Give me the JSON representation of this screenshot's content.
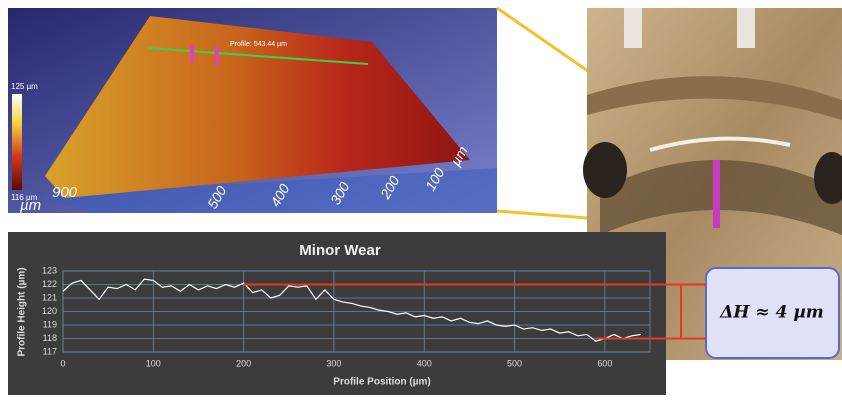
{
  "surface_view": {
    "colorbar_max": "125 µm",
    "colorbar_min": "116 µm",
    "profile_label": "Profile: 543.44 µm",
    "axis_labels": [
      "900",
      "µm",
      "µm",
      "100",
      "200",
      "300",
      "400",
      "500"
    ]
  },
  "chart_data": {
    "type": "line",
    "title": "Minor Wear",
    "x_label": "Profile Position (µm)",
    "y_label": "Profile Height (µm)",
    "x": [
      0,
      10,
      20,
      30,
      40,
      50,
      60,
      70,
      80,
      90,
      100,
      110,
      120,
      130,
      140,
      150,
      160,
      170,
      180,
      190,
      200,
      210,
      220,
      230,
      240,
      250,
      260,
      270,
      280,
      290,
      300,
      310,
      320,
      330,
      340,
      350,
      360,
      370,
      380,
      390,
      400,
      410,
      420,
      430,
      440,
      450,
      460,
      470,
      480,
      490,
      500,
      510,
      520,
      530,
      540,
      550,
      560,
      570,
      580,
      590,
      600,
      610,
      620,
      630,
      640
    ],
    "values": [
      121.5,
      122.1,
      122.3,
      121.6,
      120.9,
      121.8,
      121.7,
      122.0,
      121.6,
      122.4,
      122.3,
      121.8,
      121.9,
      121.5,
      122.0,
      121.6,
      121.9,
      121.7,
      122.0,
      121.8,
      122.1,
      121.4,
      121.6,
      121.0,
      121.2,
      121.9,
      121.8,
      121.9,
      120.9,
      121.6,
      120.9,
      120.7,
      120.6,
      120.4,
      120.3,
      120.1,
      120.0,
      119.8,
      119.9,
      119.6,
      119.7,
      119.5,
      119.6,
      119.3,
      119.5,
      119.2,
      119.1,
      119.3,
      119.0,
      118.9,
      119.0,
      118.7,
      118.8,
      118.6,
      118.7,
      118.4,
      118.5,
      118.2,
      118.3,
      117.8,
      118.0,
      118.3,
      118.0,
      118.2,
      118.3
    ],
    "color": "#ffffff",
    "xlim": [
      0,
      650
    ],
    "ylim": [
      117,
      123
    ],
    "xticks": [
      0,
      100,
      200,
      300,
      400,
      500,
      600
    ],
    "yticks": [
      117,
      118,
      119,
      120,
      121,
      122,
      123
    ],
    "grid": true,
    "reference_lines": [
      {
        "x": 200,
        "value": 122
      },
      {
        "x": 590,
        "value": 118
      }
    ],
    "reference_color": "#e8381e"
  },
  "annotation": "ΔH ≈ 4 µm"
}
